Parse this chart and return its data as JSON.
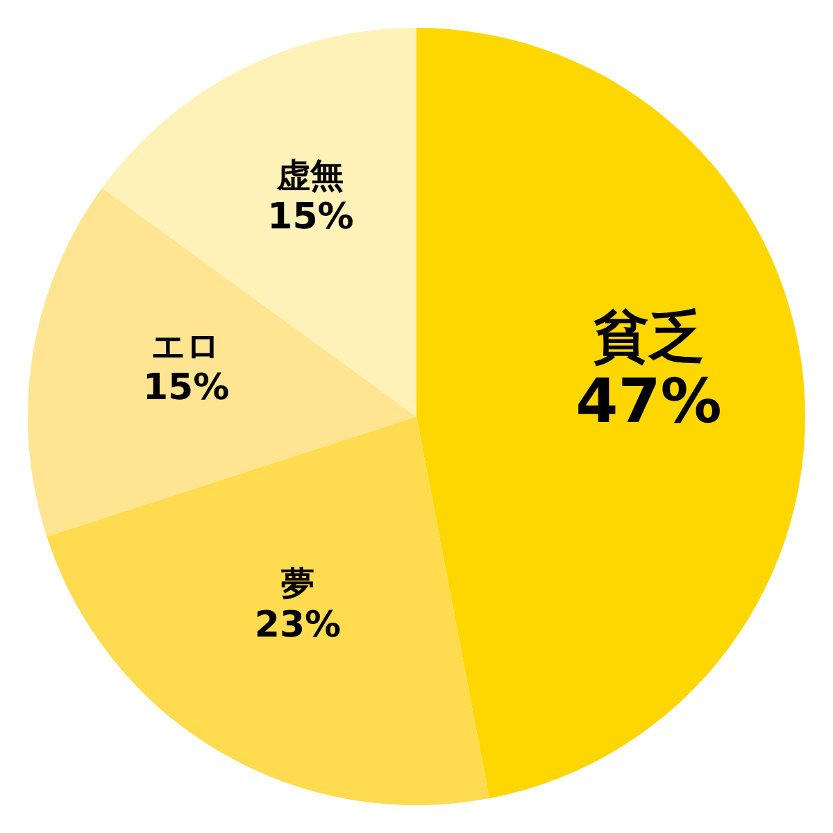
{
  "chart_data": {
    "type": "pie",
    "categories": [
      "貧乏",
      "夢",
      "エロ",
      "虚無"
    ],
    "values": [
      47,
      23,
      15,
      15
    ],
    "value_labels": [
      "47%",
      "23%",
      "15%",
      "15%"
    ],
    "colors": [
      "#ffd700",
      "#ffdc4f",
      "#ffe491",
      "#fff2b8"
    ]
  }
}
